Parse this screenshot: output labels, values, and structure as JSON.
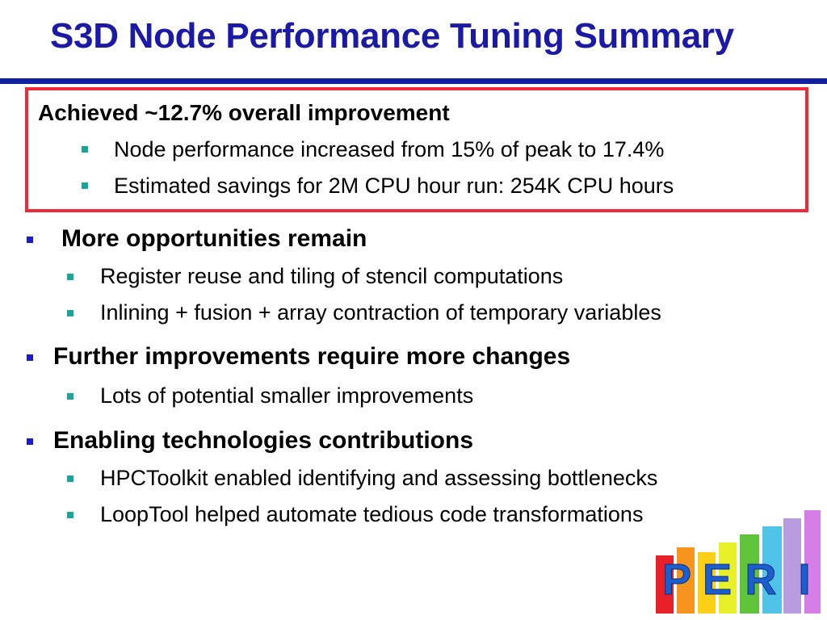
{
  "slide": {
    "title": "S3D Node Performance Tuning Summary",
    "highlight": {
      "heading": "Achieved ~12.7% overall improvement",
      "items": [
        "Node performance increased from 15% of peak to 17.4%",
        "Estimated savings for 2M CPU hour run:   254K CPU hours"
      ]
    },
    "sections": [
      {
        "heading": "More opportunities remain",
        "items": [
          "Register reuse and tiling of stencil computations",
          "Inlining + fusion + array contraction of temporary variables"
        ]
      },
      {
        "heading": "Further improvements require more changes",
        "items": [
          "Lots of potential smaller improvements"
        ]
      },
      {
        "heading": "Enabling technologies contributions",
        "items": [
          "HPCToolkit enabled identifying and assessing bottlenecks",
          "LoopTool helped automate tedious code transformations"
        ]
      }
    ],
    "logo": {
      "letters": [
        "P",
        "E",
        "R",
        "I"
      ],
      "bar_colors": [
        "#e8202a",
        "#f7941d",
        "#fdd017",
        "#e8f02a",
        "#5fc43a",
        "#4fc3e8",
        "#b99be0",
        "#d67ee8"
      ]
    },
    "colors": {
      "title": "#1a1aa6",
      "rule": "#0f1f9e",
      "box_border": "#ee2a3a",
      "bullet_main": "#1b1bd0",
      "bullet_sub": "#1aa59a"
    }
  }
}
